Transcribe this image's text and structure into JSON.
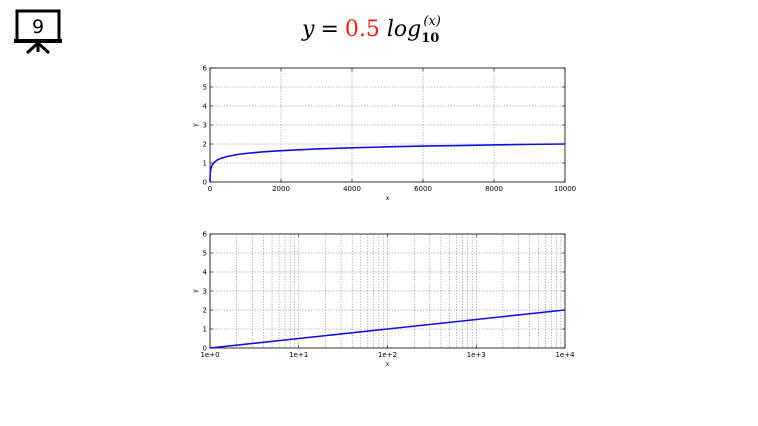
{
  "slide": {
    "number": "9"
  },
  "equation": {
    "lhs": "y",
    "eq": "=",
    "coefficient": "0.5",
    "func": "log",
    "base": "10",
    "arg": "(x)",
    "coef_color": "#e8221b"
  },
  "chart_data": [
    {
      "type": "line",
      "xlabel": "x",
      "ylabel": "y",
      "xlim": [
        0,
        10000
      ],
      "ylim": [
        0,
        6
      ],
      "xticks": [
        0,
        2000,
        4000,
        6000,
        8000,
        10000
      ],
      "xtick_labels": [
        "0",
        "2000",
        "4000",
        "6000",
        "8000",
        "10000"
      ],
      "yticks": [
        0,
        1,
        2,
        3,
        4,
        5,
        6
      ],
      "ytick_labels": [
        "0",
        "1",
        "2",
        "3",
        "4",
        "5",
        "6"
      ],
      "grid": true,
      "xscale": "linear",
      "series": [
        {
          "color": "#1010e0",
          "x": [
            1,
            5,
            10,
            20,
            50,
            100,
            200,
            300,
            500,
            750,
            1000,
            1500,
            2000,
            3000,
            4000,
            5000,
            6000,
            7000,
            8000,
            9000,
            10000
          ],
          "y": [
            0,
            0.35,
            0.5,
            0.65,
            0.85,
            1.0,
            1.15,
            1.24,
            1.35,
            1.44,
            1.5,
            1.59,
            1.65,
            1.74,
            1.8,
            1.85,
            1.89,
            1.92,
            1.95,
            1.98,
            2.0
          ]
        }
      ]
    },
    {
      "type": "line",
      "xlabel": "x",
      "ylabel": "y",
      "xlim": [
        1,
        10000
      ],
      "ylim": [
        0,
        6
      ],
      "xticks": [
        1,
        10,
        100,
        1000,
        10000
      ],
      "xtick_labels": [
        "1e+0",
        "1e+1",
        "1e+2",
        "1e+3",
        "1e+4"
      ],
      "yticks": [
        0,
        1,
        2,
        3,
        4,
        5,
        6
      ],
      "ytick_labels": [
        "0",
        "1",
        "2",
        "3",
        "4",
        "5",
        "6"
      ],
      "grid": true,
      "xscale": "log",
      "series": [
        {
          "color": "#1010e0",
          "x": [
            1,
            10,
            100,
            1000,
            10000
          ],
          "y": [
            0,
            0.5,
            1.0,
            1.5,
            2.0
          ]
        }
      ]
    }
  ]
}
